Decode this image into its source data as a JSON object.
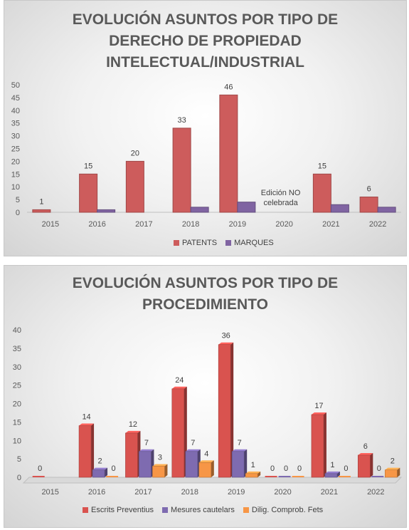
{
  "chart_data": [
    {
      "type": "bar",
      "title": [
        "EVOLUCIÓN ASUNTOS POR TIPO DE",
        "DERECHO DE PROPIEDAD",
        "INTELECTUAL/INDUSTRIAL"
      ],
      "categories": [
        "2015",
        "2016",
        "2017",
        "2018",
        "2019",
        "2020",
        "2021",
        "2022"
      ],
      "series": [
        {
          "name": "PATENTS",
          "values": [
            1,
            15,
            20,
            33,
            46,
            null,
            15,
            6
          ],
          "color": "#cd5c5c"
        },
        {
          "name": "MARQUES",
          "values": [
            0,
            1,
            0,
            2,
            4,
            null,
            3,
            2
          ],
          "color": "#8064a2"
        }
      ],
      "data_labels": [
        "1",
        "15",
        "20",
        "33",
        "46",
        "",
        "15",
        "6"
      ],
      "annotation": [
        "Edición NO",
        "celebrada"
      ],
      "ylim": [
        0,
        50
      ],
      "yticks": [
        "0",
        "5",
        "10",
        "15",
        "20",
        "25",
        "30",
        "35",
        "40",
        "45",
        "50"
      ],
      "grid": false,
      "legend": "bottom"
    },
    {
      "type": "bar",
      "title": [
        "EVOLUCIÓN ASUNTOS POR TIPO DE",
        "PROCEDIMIENTO"
      ],
      "categories": [
        "2015",
        "2016",
        "2017",
        "2018",
        "2019",
        "2020",
        "2021",
        "2022"
      ],
      "series": [
        {
          "name": "Escrits Preventius",
          "values": [
            0,
            14,
            12,
            24,
            36,
            0,
            17,
            6
          ],
          "color": "#d9534f"
        },
        {
          "name": "Mesures cautelars",
          "values": [
            0,
            2,
            7,
            7,
            7,
            0,
            1,
            0
          ],
          "color": "#7e6bb0"
        },
        {
          "name": "Dilig.  Comprob. Fets",
          "values": [
            0,
            0,
            3,
            4,
            1,
            0,
            0,
            2
          ],
          "color": "#f79646"
        }
      ],
      "data_labels": [
        [
          "0",
          "14",
          "12",
          "24",
          "36",
          "0",
          "17",
          "6"
        ],
        [
          "",
          "2",
          "7",
          "7",
          "7",
          "0",
          "1",
          "0"
        ],
        [
          "",
          "0",
          "3",
          "4",
          "1",
          "0",
          "0",
          "2"
        ]
      ],
      "ylim": [
        0,
        40
      ],
      "yticks": [
        "0",
        "5",
        "10",
        "15",
        "20",
        "25",
        "30",
        "35",
        "40"
      ],
      "grid": false,
      "legend": "bottom",
      "style": "3d"
    }
  ]
}
